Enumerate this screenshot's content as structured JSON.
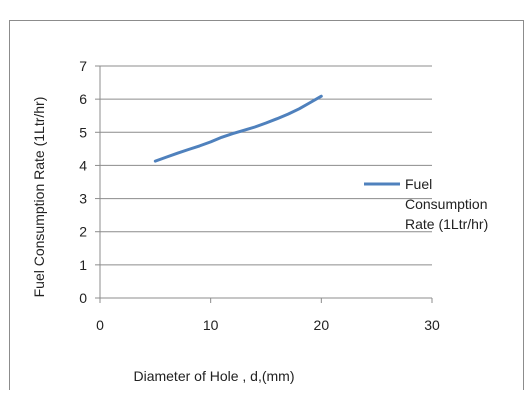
{
  "chart_data": {
    "type": "line",
    "xlabel": "Diameter of Hole , d,(mm)",
    "ylabel": "Fuel Consumption Rate (1Ltr/hr)",
    "xlim": [
      0,
      30
    ],
    "ylim": [
      0,
      7
    ],
    "xticks": [
      0,
      10,
      20,
      30
    ],
    "yticks": [
      0,
      1,
      2,
      3,
      4,
      5,
      6,
      7
    ],
    "grid": "horizontal",
    "legend_position": "right",
    "series": [
      {
        "name": "Fuel Consumption Rate (1Ltr/hr)",
        "legend_lines": [
          "Fuel",
          "Consumption",
          "Rate (1Ltr/hr)"
        ],
        "color": "#4f81bd",
        "x": [
          5,
          6,
          7,
          8,
          9,
          10,
          11,
          12,
          13,
          14,
          15,
          16,
          17,
          18,
          19,
          20
        ],
        "y": [
          4.13,
          4.25,
          4.37,
          4.48,
          4.59,
          4.71,
          4.85,
          4.96,
          5.06,
          5.16,
          5.28,
          5.41,
          5.55,
          5.71,
          5.9,
          6.09
        ]
      }
    ]
  }
}
